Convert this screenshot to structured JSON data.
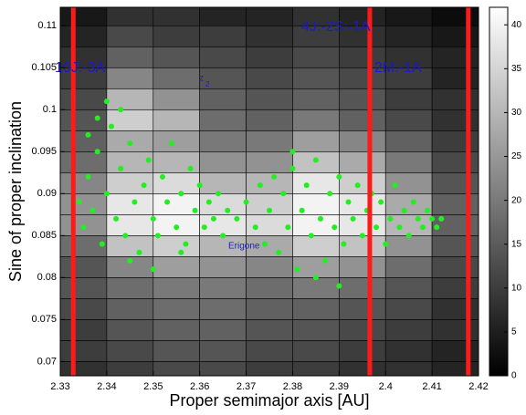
{
  "chart_data": {
    "type": "heatmap",
    "xlabel": "Proper semimajor axis [AU]",
    "ylabel": "Sine of proper inclination",
    "xlim": [
      2.33,
      2.42
    ],
    "ylim": [
      0.0683,
      0.1122
    ],
    "xticks": [
      2.33,
      2.34,
      2.35,
      2.36,
      2.37,
      2.38,
      2.39,
      2.4,
      2.41,
      2.42
    ],
    "yticks": [
      0.07,
      0.075,
      0.08,
      0.085,
      0.09,
      0.095,
      0.1,
      0.105,
      0.11
    ],
    "xbins": [
      2.33,
      2.34,
      2.35,
      2.36,
      2.37,
      2.38,
      2.39,
      2.4,
      2.41,
      2.42
    ],
    "ybins": [
      0.0675,
      0.07,
      0.0725,
      0.075,
      0.0775,
      0.08,
      0.0825,
      0.085,
      0.0875,
      0.09,
      0.0925,
      0.095,
      0.0975,
      0.1,
      0.1025,
      0.105,
      0.1075,
      0.11,
      0.1125
    ],
    "z": [
      [
        8,
        10,
        12,
        12,
        10,
        10,
        8,
        8,
        6
      ],
      [
        10,
        12,
        14,
        14,
        12,
        12,
        10,
        8,
        6
      ],
      [
        10,
        14,
        16,
        16,
        14,
        14,
        12,
        10,
        8
      ],
      [
        12,
        16,
        18,
        18,
        16,
        16,
        14,
        12,
        8
      ],
      [
        14,
        18,
        20,
        20,
        18,
        20,
        18,
        14,
        10
      ],
      [
        14,
        22,
        26,
        24,
        22,
        26,
        24,
        18,
        12
      ],
      [
        18,
        32,
        34,
        30,
        28,
        34,
        32,
        24,
        14
      ],
      [
        24,
        38,
        40,
        38,
        36,
        40,
        38,
        30,
        16
      ],
      [
        24,
        38,
        40,
        36,
        34,
        40,
        38,
        28,
        16
      ],
      [
        22,
        34,
        36,
        30,
        30,
        38,
        34,
        24,
        14
      ],
      [
        18,
        30,
        30,
        24,
        24,
        32,
        28,
        20,
        12
      ],
      [
        16,
        28,
        26,
        20,
        20,
        26,
        22,
        16,
        10
      ],
      [
        14,
        34,
        30,
        18,
        16,
        20,
        16,
        12,
        8
      ],
      [
        12,
        30,
        24,
        16,
        14,
        16,
        14,
        10,
        8
      ],
      [
        10,
        22,
        18,
        14,
        12,
        14,
        12,
        10,
        6
      ],
      [
        8,
        16,
        14,
        12,
        10,
        12,
        10,
        8,
        6
      ],
      [
        6,
        12,
        10,
        10,
        8,
        10,
        8,
        6,
        4
      ],
      [
        4,
        8,
        8,
        6,
        6,
        8,
        6,
        4,
        2
      ]
    ],
    "clim": [
      0,
      42
    ],
    "cticks": [
      0,
      5,
      10,
      15,
      20,
      25,
      30,
      35,
      40
    ],
    "scatter": {
      "color": "#22ee22",
      "x": [
        2.334,
        2.335,
        2.336,
        2.337,
        2.338,
        2.339,
        2.34,
        2.341,
        2.342,
        2.343,
        2.344,
        2.345,
        2.346,
        2.347,
        2.348,
        2.349,
        2.35,
        2.351,
        2.352,
        2.353,
        2.354,
        2.355,
        2.356,
        2.357,
        2.358,
        2.359,
        2.36,
        2.361,
        2.362,
        2.363,
        2.364,
        2.365,
        2.366,
        2.34,
        2.338,
        2.343,
        2.336,
        2.345,
        2.35,
        2.356,
        2.368,
        2.37,
        2.372,
        2.373,
        2.374,
        2.375,
        2.376,
        2.377,
        2.378,
        2.379,
        2.38,
        2.381,
        2.382,
        2.383,
        2.384,
        2.385,
        2.386,
        2.387,
        2.388,
        2.389,
        2.39,
        2.391,
        2.392,
        2.393,
        2.394,
        2.395,
        2.396,
        2.397,
        2.398,
        2.399,
        2.4,
        2.401,
        2.402,
        2.403,
        2.404,
        2.405,
        2.406,
        2.407,
        2.408,
        2.409,
        2.41,
        2.411,
        2.412,
        2.385,
        2.39,
        2.38
      ],
      "values": [
        0.089,
        0.086,
        0.092,
        0.088,
        0.095,
        0.084,
        0.09,
        0.098,
        0.087,
        0.093,
        0.085,
        0.096,
        0.089,
        0.083,
        0.091,
        0.094,
        0.087,
        0.085,
        0.092,
        0.089,
        0.096,
        0.086,
        0.09,
        0.084,
        0.093,
        0.088,
        0.091,
        0.086,
        0.089,
        0.087,
        0.09,
        0.085,
        0.088,
        0.101,
        0.099,
        0.1,
        0.097,
        0.082,
        0.081,
        0.083,
        0.087,
        0.089,
        0.086,
        0.091,
        0.084,
        0.088,
        0.092,
        0.083,
        0.09,
        0.086,
        0.093,
        0.081,
        0.088,
        0.091,
        0.085,
        0.094,
        0.087,
        0.082,
        0.09,
        0.086,
        0.092,
        0.084,
        0.089,
        0.087,
        0.091,
        0.085,
        0.088,
        0.09,
        0.086,
        0.089,
        0.084,
        0.087,
        0.091,
        0.086,
        0.088,
        0.085,
        0.089,
        0.087,
        0.086,
        0.088,
        0.087,
        0.086,
        0.087,
        0.08,
        0.079,
        0.095
      ]
    },
    "vlines": {
      "color": "#ff1a1a",
      "values": [
        2.3328,
        2.3966,
        2.4178
      ]
    },
    "annotations": [
      "10J:-3A",
      "4J:-2S:-1A",
      "2M:-1A",
      "z",
      "2",
      "Erigone"
    ]
  }
}
